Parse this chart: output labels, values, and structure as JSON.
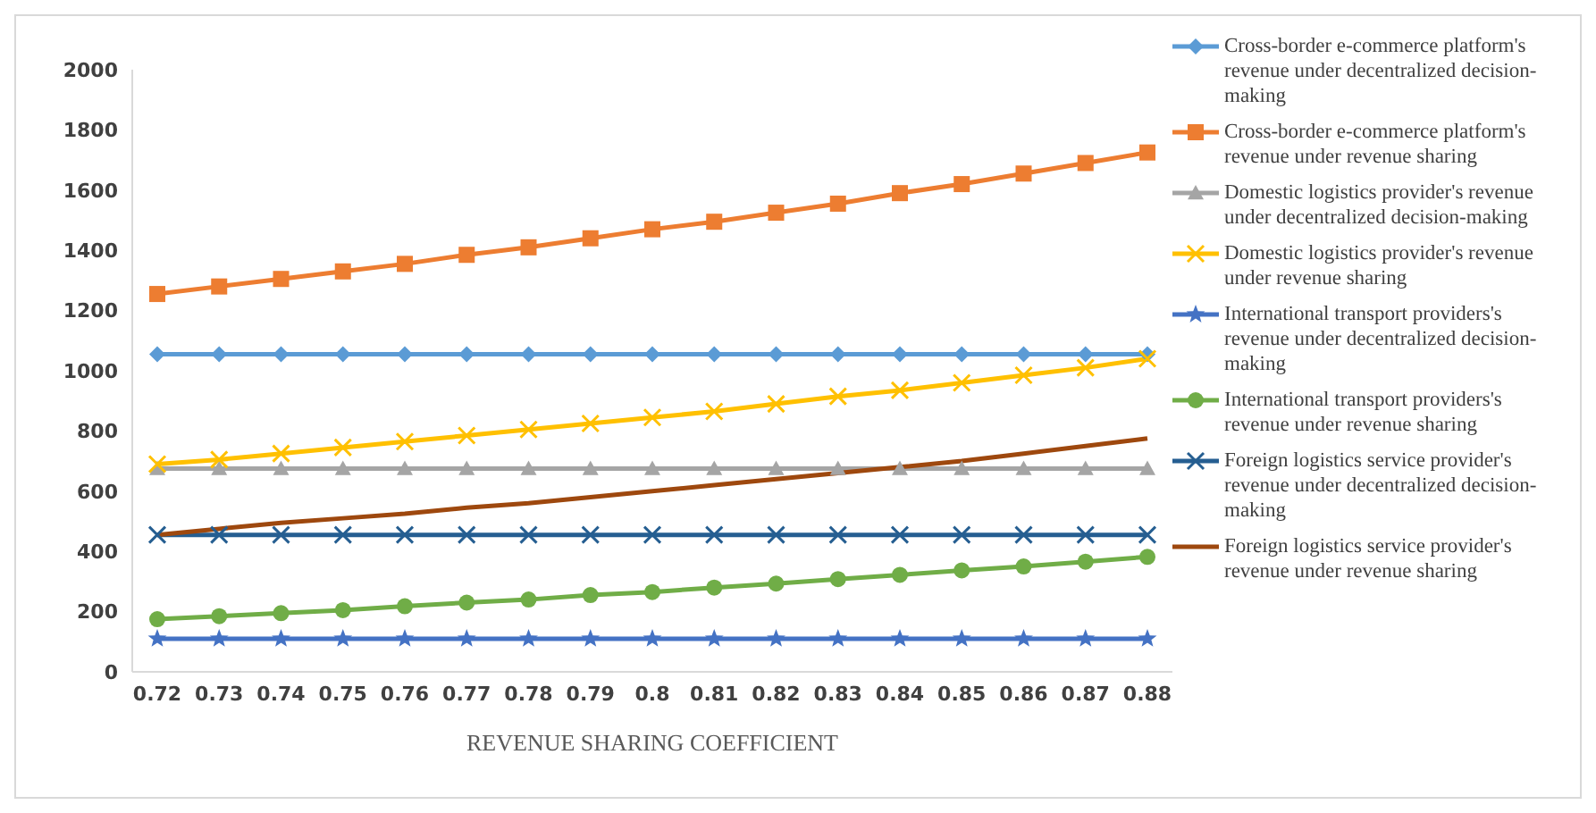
{
  "chart_data": {
    "type": "line",
    "xlabel": "REVENUE SHARING COEFFICIENT",
    "categories": [
      "0.72",
      "0.73",
      "0.74",
      "0.75",
      "0.76",
      "0.77",
      "0.78",
      "0.79",
      "0.8",
      "0.81",
      "0.82",
      "0.83",
      "0.84",
      "0.85",
      "0.86",
      "0.87",
      "0.88"
    ],
    "series": [
      {
        "name": "Cross-border e-commerce platform's revenue under decentralized decision-making",
        "color": "#5b9bd5",
        "marker": "diamond",
        "values": [
          1055,
          1055,
          1055,
          1055,
          1055,
          1055,
          1055,
          1055,
          1055,
          1055,
          1055,
          1055,
          1055,
          1055,
          1055,
          1055,
          1055
        ]
      },
      {
        "name": "Cross-border e-commerce platform's revenue under revenue sharing",
        "color": "#ed7d31",
        "marker": "square",
        "values": [
          1255,
          1280,
          1305,
          1330,
          1355,
          1385,
          1410,
          1440,
          1470,
          1495,
          1525,
          1555,
          1590,
          1620,
          1655,
          1690,
          1725
        ]
      },
      {
        "name": "Domestic logistics provider's revenue under decentralized decision-making",
        "color": "#a5a5a5",
        "marker": "triangle",
        "values": [
          675,
          675,
          675,
          675,
          675,
          675,
          675,
          675,
          675,
          675,
          675,
          675,
          675,
          675,
          675,
          675,
          675
        ]
      },
      {
        "name": "Domestic logistics provider's revenue under revenue sharing",
        "color": "#ffc000",
        "marker": "cross",
        "values": [
          690,
          705,
          725,
          745,
          765,
          785,
          805,
          825,
          845,
          865,
          890,
          915,
          935,
          960,
          985,
          1010,
          1040
        ]
      },
      {
        "name": "International transport providers's revenue under decentralized decision-making",
        "color": "#4472c4",
        "marker": "star",
        "values": [
          110,
          110,
          110,
          110,
          110,
          110,
          110,
          110,
          110,
          110,
          110,
          110,
          110,
          110,
          110,
          110,
          110
        ]
      },
      {
        "name": "International transport providers's revenue under revenue sharing",
        "color": "#70ad47",
        "marker": "circle",
        "values": [
          175,
          185,
          195,
          205,
          218,
          230,
          240,
          255,
          265,
          280,
          293,
          308,
          322,
          337,
          350,
          366,
          382
        ]
      },
      {
        "name": "Foreign logistics service provider's revenue under decentralized decision-making",
        "color": "#255e91",
        "marker": "cross",
        "values": [
          455,
          455,
          455,
          455,
          455,
          455,
          455,
          455,
          455,
          455,
          455,
          455,
          455,
          455,
          455,
          455,
          455
        ]
      },
      {
        "name": "Foreign logistics service provider's revenue under revenue sharing",
        "color": "#9e480e",
        "marker": "none",
        "values": [
          455,
          475,
          495,
          510,
          525,
          545,
          560,
          580,
          600,
          620,
          640,
          660,
          680,
          700,
          725,
          750,
          775
        ]
      }
    ],
    "ylim": [
      0,
      2000
    ],
    "yticks": [
      0,
      200,
      400,
      600,
      800,
      1000,
      1200,
      1400,
      1600,
      1800,
      2000
    ],
    "grid": false,
    "legend": "right"
  }
}
